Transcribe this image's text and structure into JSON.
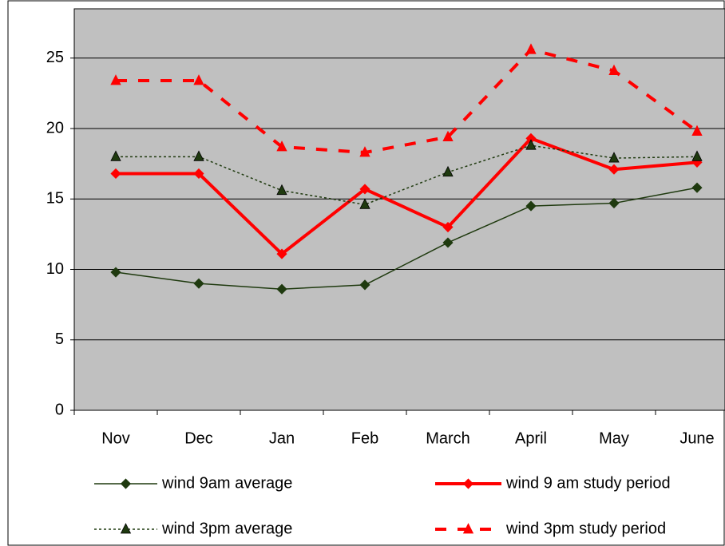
{
  "chart_data": {
    "type": "line",
    "categories": [
      "Nov",
      "Dec",
      "Jan",
      "Feb",
      "March",
      "April",
      "May",
      "June"
    ],
    "ylim": [
      0,
      28.5
    ],
    "yticks": [
      0,
      5,
      10,
      15,
      20,
      25
    ],
    "grid": true,
    "series": [
      {
        "name": "wind 9am average",
        "color": "#1f3a0f",
        "line_style": "solid",
        "line_width": 1.5,
        "marker": "diamond",
        "values": [
          9.8,
          9.0,
          8.6,
          8.9,
          11.9,
          14.5,
          14.7,
          15.8
        ]
      },
      {
        "name": "wind 9 am study period",
        "color": "#ff0000",
        "line_style": "solid",
        "line_width": 4,
        "marker": "diamond",
        "values": [
          16.8,
          16.8,
          11.1,
          15.7,
          13.0,
          19.3,
          17.1,
          17.6
        ]
      },
      {
        "name": "wind 3pm average",
        "color": "#1f3a0f",
        "line_style": "dotted",
        "line_width": 1.5,
        "marker": "triangle",
        "values": [
          18.0,
          18.0,
          15.6,
          14.6,
          16.9,
          18.8,
          17.9,
          18.0
        ]
      },
      {
        "name": "wind 3pm study period",
        "color": "#ff0000",
        "line_style": "dashed",
        "line_width": 4,
        "marker": "triangle",
        "values": [
          23.4,
          23.4,
          18.7,
          18.3,
          19.4,
          25.6,
          24.1,
          19.8
        ]
      }
    ]
  }
}
